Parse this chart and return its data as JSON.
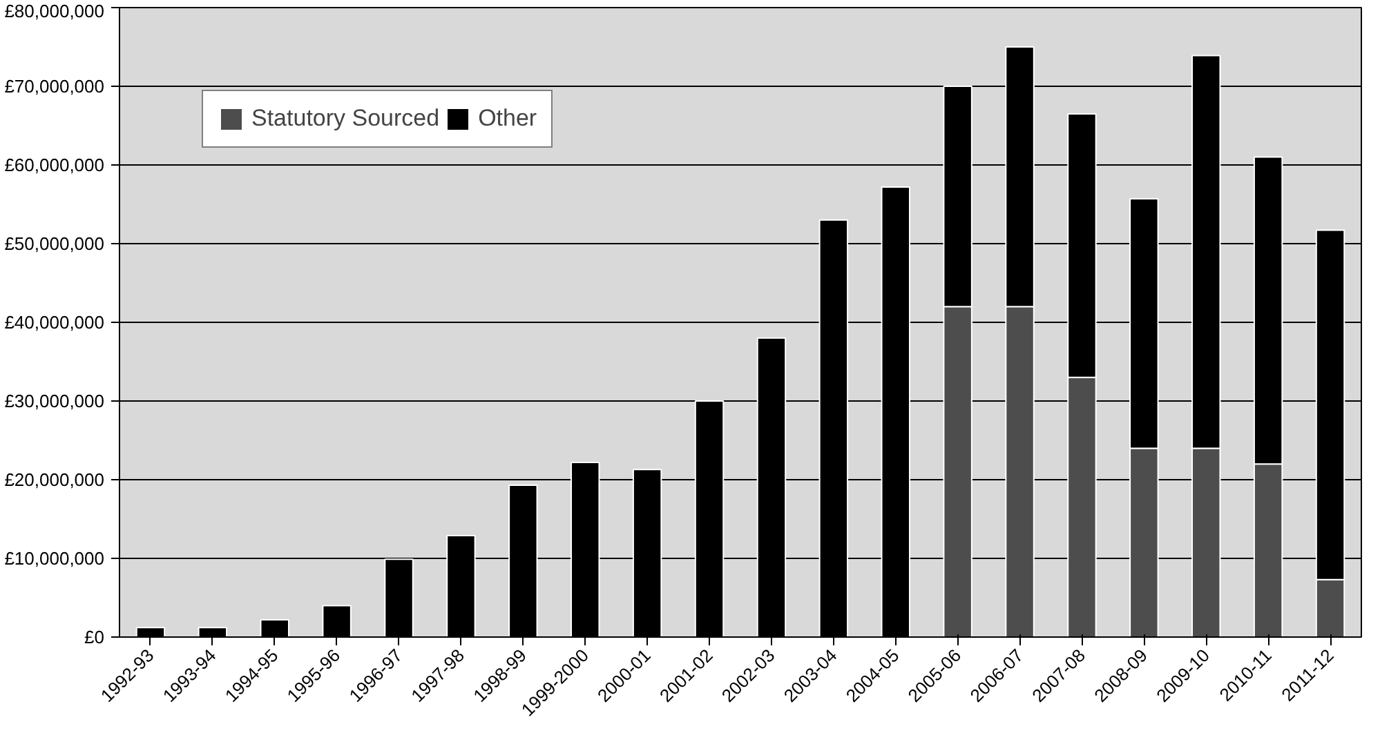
{
  "chart_data": {
    "type": "bar",
    "stacked": true,
    "categories": [
      "1992-93",
      "1993-94",
      "1994-95",
      "1995-96",
      "1996-97",
      "1997-98",
      "1998-99",
      "1999-2000",
      "2000-01",
      "2001-02",
      "2002-03",
      "2003-04",
      "2004-05",
      "2005-06",
      "2006-07",
      "2007-08",
      "2008-09",
      "2009-10",
      "2010-11",
      "2011-12"
    ],
    "series": [
      {
        "name": "Statutory Sourced",
        "color": "#4d4d4d",
        "values": [
          0,
          0,
          0,
          0,
          0,
          0,
          0,
          0,
          0,
          0,
          0,
          0,
          0,
          42000000,
          42000000,
          33000000,
          24000000,
          24000000,
          22000000,
          7300000
        ]
      },
      {
        "name": "Other",
        "color": "#000000",
        "values": [
          1200000,
          1200000,
          2200000,
          4000000,
          9900000,
          12900000,
          19300000,
          22200000,
          21300000,
          30000000,
          38000000,
          53000000,
          57200000,
          28000000,
          33000000,
          33500000,
          31700000,
          49900000,
          39000000,
          44400000
        ]
      }
    ],
    "ylim": [
      0,
      80000000
    ],
    "yticks": [
      {
        "value": 0,
        "label": "£0"
      },
      {
        "value": 10000000,
        "label": "£10,000,000"
      },
      {
        "value": 20000000,
        "label": "£20,000,000"
      },
      {
        "value": 30000000,
        "label": "£30,000,000"
      },
      {
        "value": 40000000,
        "label": "£40,000,000"
      },
      {
        "value": 50000000,
        "label": "£50,000,000"
      },
      {
        "value": 60000000,
        "label": "£60,000,000"
      },
      {
        "value": 70000000,
        "label": "£70,000,000"
      },
      {
        "value": 80000000,
        "label": "£80,000,000"
      }
    ],
    "grid": "y",
    "legend": "top left"
  }
}
